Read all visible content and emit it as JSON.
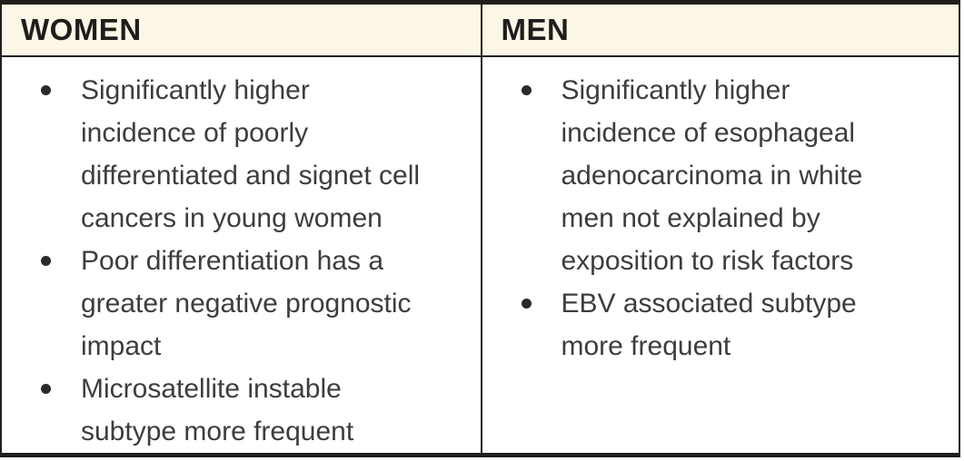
{
  "table": {
    "colors": {
      "header_bg": "#fbf6e5",
      "border": "#201d1a",
      "header_text": "#1f1d1b",
      "body_text": "#3d3d3c"
    },
    "columns": [
      {
        "header": "WOMEN",
        "bullets": [
          "Significantly higher incidence of poorly differentiated and signet cell cancers in young women",
          "Poor differentiation has a greater negative prognostic impact",
          "Microsatellite instable subtype more frequent"
        ]
      },
      {
        "header": "MEN",
        "bullets": [
          "Significantly higher incidence of esophageal adenocarcinoma in white men not explained by exposition to risk factors",
          "EBV associated subtype more frequent"
        ]
      }
    ]
  }
}
